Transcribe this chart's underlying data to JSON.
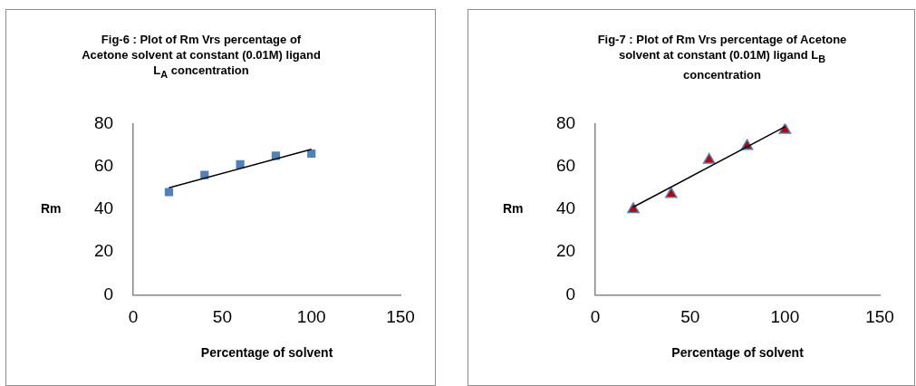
{
  "chart_data": [
    {
      "type": "scatter",
      "title": "Fig-6 :  Plot of Rm Vrs percentage of Acetone solvent at constant (0.01M) ligand  L$_{A}$ concentration",
      "xlabel": "Percentage of solvent",
      "ylabel": "Rm",
      "xlim": [
        0,
        150
      ],
      "xticks": [
        0,
        50,
        100,
        150
      ],
      "ylim": [
        0,
        80
      ],
      "yticks": [
        0,
        20,
        40,
        60,
        80
      ],
      "grid": false,
      "legend": false,
      "series": [
        {
          "type": "scatter",
          "color": "#4f81bd",
          "marker": "square",
          "x": [
            20,
            40,
            60,
            80,
            100
          ],
          "values": [
            48,
            56,
            61,
            65,
            66
          ]
        },
        {
          "type": "line",
          "color": "#000000",
          "marker": "none",
          "line_style": "solid",
          "x": [
            20,
            100
          ],
          "values": [
            50,
            68
          ]
        }
      ]
    },
    {
      "type": "scatter",
      "title": "Fig-7 :  Plot of Rm Vrs percentage of Acetone solvent at constant (0.01M) ligand L$_{B}$ concentration",
      "xlabel": "Percentage of solvent",
      "ylabel": "Rm",
      "xlim": [
        0,
        150
      ],
      "xticks": [
        0,
        50,
        100,
        150
      ],
      "ylim": [
        0,
        80
      ],
      "yticks": [
        0,
        20,
        40,
        60,
        80
      ],
      "grid": false,
      "legend": false,
      "series": [
        {
          "type": "scatter",
          "color": "#c00000",
          "marker": "triangle",
          "x": [
            20,
            40,
            60,
            80,
            100
          ],
          "values": [
            40,
            47,
            63,
            69.5,
            77
          ]
        },
        {
          "type": "line",
          "color": "#000000",
          "marker": "none",
          "line_style": "solid",
          "x": [
            20,
            100
          ],
          "values": [
            41,
            78.5
          ]
        }
      ]
    }
  ]
}
